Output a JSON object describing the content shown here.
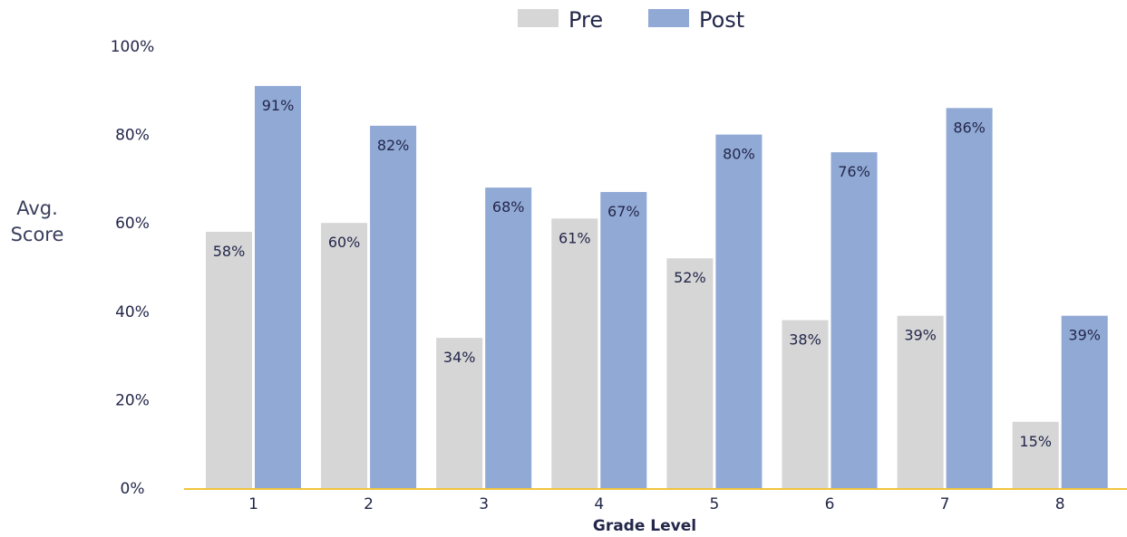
{
  "chart_data": {
    "type": "bar",
    "xlabel": "Grade Level",
    "ylabel": [
      "Avg.",
      "Score"
    ],
    "categories": [
      "1",
      "2",
      "3",
      "4",
      "5",
      "6",
      "7",
      "8"
    ],
    "series": [
      {
        "name": "Pre",
        "color": "#d6d6d6",
        "values": [
          58,
          60,
          34,
          61,
          52,
          38,
          39,
          15
        ],
        "labels": [
          "58%",
          "60%",
          "34%",
          "61%",
          "52%",
          "38%",
          "39%",
          "15%"
        ]
      },
      {
        "name": "Post",
        "color": "#91a9d5",
        "values": [
          91,
          82,
          68,
          67,
          80,
          76,
          86,
          39
        ],
        "labels": [
          "91%",
          "82%",
          "68%",
          "67%",
          "80%",
          "76%",
          "86%",
          "39%"
        ]
      }
    ],
    "ylim": [
      0,
      100
    ],
    "yticks": [
      0,
      20,
      40,
      60,
      80,
      100
    ],
    "ytick_labels": [
      "0%",
      "20%",
      "40%",
      "60%",
      "80%",
      "100%"
    ],
    "legend_position": "top-center",
    "grid": false,
    "axis_color": "#f0c43c"
  }
}
